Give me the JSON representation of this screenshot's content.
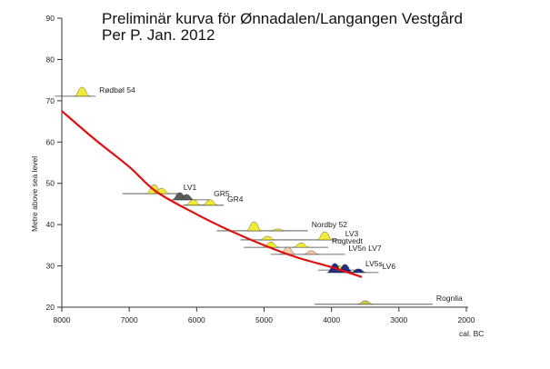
{
  "chart_data": {
    "type": "line",
    "title": "Preliminär kurva för Ønnadalen/Langangen Vestgård",
    "subtitle": "Per P. Jan. 2012",
    "xlabel": "cal. BC",
    "ylabel": "Metre above sea level",
    "xlim": [
      8000,
      2000
    ],
    "ylim": [
      20,
      90
    ],
    "x_reversed": true,
    "grid": false,
    "xticks": [
      "8000",
      "7000",
      "6000",
      "5000",
      "4000",
      "3000",
      "2000"
    ],
    "yticks": [
      "20",
      "30",
      "40",
      "50",
      "60",
      "70",
      "80",
      "90"
    ],
    "curve": {
      "color": "#e01010",
      "x": [
        8000,
        7500,
        7000,
        6600,
        6000,
        5500,
        5000,
        4500,
        4000,
        3550
      ],
      "y": [
        67.5,
        60.5,
        54,
        48,
        42.5,
        38.5,
        35,
        32,
        29.7,
        27.3
      ]
    },
    "samples": [
      {
        "label": "Rødbøl 54",
        "elevation": 71.1,
        "range": [
          8100,
          7500
        ],
        "color": "#f2ea2a",
        "peaks": [
          [
            7700,
            1
          ]
        ]
      },
      {
        "label": "LV1",
        "elevation": 47.5,
        "range": [
          7100,
          6250
        ],
        "color": "#f2ea2a",
        "peaks": [
          [
            6630,
            1
          ],
          [
            6520,
            0.6
          ]
        ]
      },
      {
        "label": "GR5",
        "elevation": 46.0,
        "range": [
          6350,
          5800
        ],
        "color": "#555555",
        "peaks": [
          [
            6250,
            0.8
          ],
          [
            6150,
            0.6
          ]
        ]
      },
      {
        "label": "GR4",
        "elevation": 44.7,
        "range": [
          6200,
          5600
        ],
        "color": "#f2ea2a",
        "peaks": [
          [
            6050,
            0.6
          ],
          [
            5800,
            0.6
          ]
        ]
      },
      {
        "label": "Nordby 52",
        "elevation": 38.5,
        "range": [
          5700,
          4350
        ],
        "color": "#f2ea2a",
        "peaks": [
          [
            5150,
            1
          ],
          [
            4800,
            0.2
          ]
        ]
      },
      {
        "label": "LV3",
        "elevation": 36.3,
        "range": [
          5350,
          3850
        ],
        "color": "#f2ea2a",
        "peaks": [
          [
            4950,
            0.4
          ],
          [
            4100,
            0.9
          ]
        ]
      },
      {
        "label": "Rugtvedt",
        "elevation": 34.5,
        "range": [
          5300,
          4050
        ],
        "color": "#f2ea2a",
        "peaks": [
          [
            4900,
            0.6
          ],
          [
            4450,
            0.5
          ]
        ]
      },
      {
        "label": "LV5n LV7",
        "elevation": 32.8,
        "range": [
          4900,
          3800
        ],
        "color": "#f5c9a0",
        "peaks": [
          [
            4650,
            0.8
          ],
          [
            4300,
            0.4
          ]
        ]
      },
      {
        "label": "LV5s",
        "elevation": 29.0,
        "range": [
          4200,
          3550
        ],
        "color": "#f2ea2a",
        "peaks": [
          [
            3900,
            0.5
          ]
        ]
      },
      {
        "label": "LV6",
        "elevation": 28.4,
        "range": [
          4050,
          3300
        ],
        "color": "#1a237e",
        "peaks": [
          [
            3950,
            1
          ],
          [
            3800,
            0.9
          ],
          [
            3600,
            0.4
          ]
        ]
      },
      {
        "label": "Rognlia",
        "elevation": 20.7,
        "range": [
          4250,
          2500
        ],
        "color": "#c9c83a",
        "peaks": [
          [
            3500,
            0.4
          ]
        ]
      }
    ]
  }
}
